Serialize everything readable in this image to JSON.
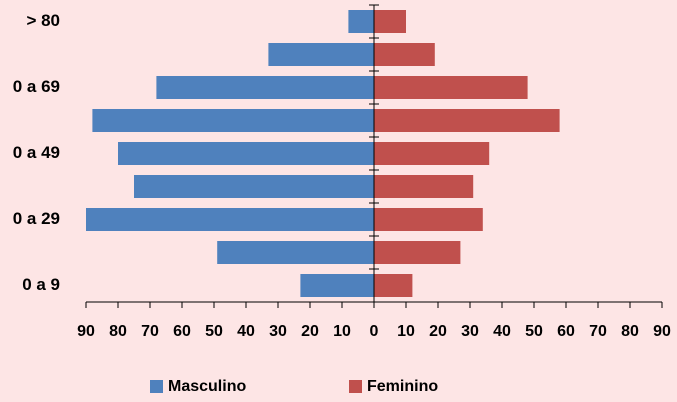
{
  "chart_data": {
    "type": "pyramid",
    "categories": [
      "0 a 9",
      null,
      "0 a 29",
      null,
      "0 a 49",
      null,
      "0 a 69",
      null,
      "> 80"
    ],
    "series": [
      {
        "name": "Masculino",
        "color": "#4f81bd",
        "values": [
          -23,
          -49,
          -90,
          -75,
          -80,
          -88,
          -68,
          -33,
          -8
        ]
      },
      {
        "name": "Feminino",
        "color": "#c0504d",
        "values": [
          12,
          27,
          34,
          31,
          36,
          58,
          48,
          19,
          10
        ]
      }
    ],
    "xlim": [
      -90,
      90
    ],
    "xticks": [
      {
        "value": -90,
        "label": "90"
      },
      {
        "value": -80,
        "label": "80"
      },
      {
        "value": -70,
        "label": "70"
      },
      {
        "value": -60,
        "label": "60"
      },
      {
        "value": -50,
        "label": "50"
      },
      {
        "value": -40,
        "label": "40"
      },
      {
        "value": -30,
        "label": "30"
      },
      {
        "value": -20,
        "label": "20"
      },
      {
        "value": -10,
        "label": "10"
      },
      0,
      10,
      20,
      30,
      40,
      50,
      60,
      70,
      80,
      90
    ],
    "legend": "bottom"
  }
}
